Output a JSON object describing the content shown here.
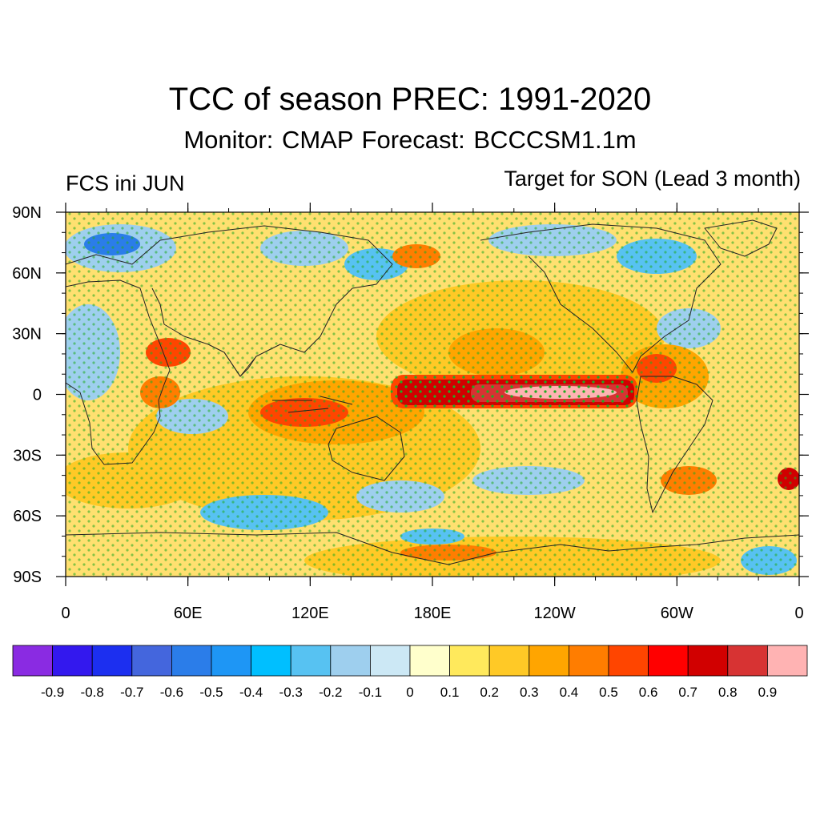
{
  "header": {
    "title": "TCC of season PREC: 1991-2020",
    "subtitle": "Monitor: CMAP   Forecast: BCCCSM1.1m",
    "left_label": "FCS ini JUN",
    "right_label": "Target for SON (Lead 3 month)"
  },
  "map": {
    "projection": "cylindrical-equidistant",
    "lon_range": [
      0,
      360
    ],
    "lat_range": [
      -90,
      90
    ],
    "lat_ticks": [
      {
        "value": 90,
        "label": "90N"
      },
      {
        "value": 60,
        "label": "60N"
      },
      {
        "value": 30,
        "label": "30N"
      },
      {
        "value": 0,
        "label": "0"
      },
      {
        "value": -30,
        "label": "30S"
      },
      {
        "value": -60,
        "label": "60S"
      },
      {
        "value": -90,
        "label": "90S"
      }
    ],
    "lon_ticks": [
      {
        "value": 0,
        "label": "0"
      },
      {
        "value": 60,
        "label": "60E"
      },
      {
        "value": 120,
        "label": "120E"
      },
      {
        "value": 180,
        "label": "180E"
      },
      {
        "value": 240,
        "label": "120W"
      },
      {
        "value": 300,
        "label": "60W"
      },
      {
        "value": 360,
        "label": "0"
      }
    ],
    "stipple_color": "#22aa22",
    "coastline_color": "#222222"
  },
  "colorbar": {
    "colors": [
      "#8a2be2",
      "#3318ee",
      "#1c2ff0",
      "#4466dd",
      "#2b7de9",
      "#1e96f5",
      "#00bfff",
      "#57c2f2",
      "#9ecfee",
      "#cce8f5",
      "#ffffcc",
      "#ffe95c",
      "#ffc926",
      "#ffa500",
      "#ff7d00",
      "#ff4500",
      "#ff0000",
      "#d10000",
      "#d73333",
      "#ffb3b3"
    ],
    "labels": [
      "-0.9",
      "-0.8",
      "-0.7",
      "-0.6",
      "-0.5",
      "-0.4",
      "-0.3",
      "-0.2",
      "-0.1",
      "0",
      "0.1",
      "0.2",
      "0.3",
      "0.4",
      "0.5",
      "0.6",
      "0.7",
      "0.8",
      "0.9"
    ]
  }
}
